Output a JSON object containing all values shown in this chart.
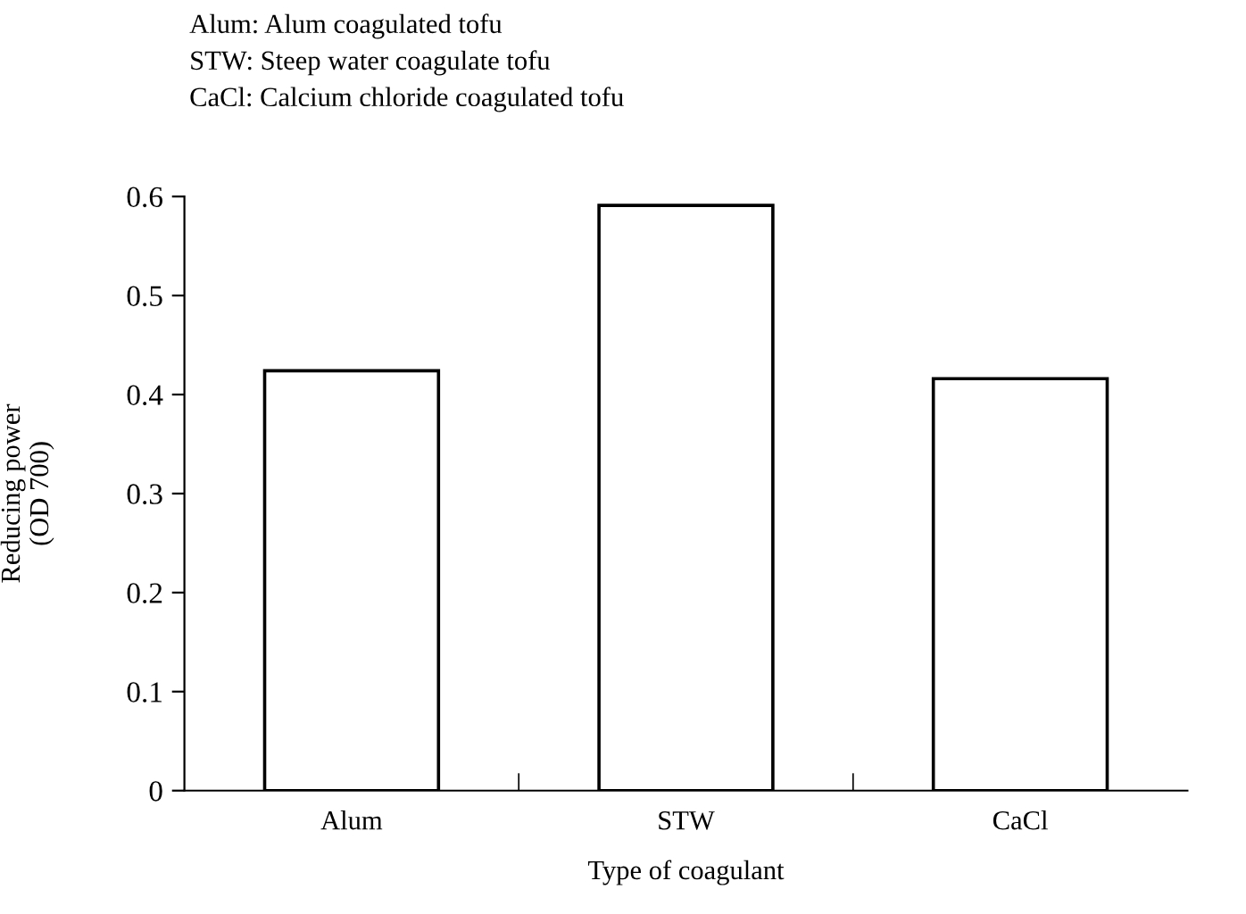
{
  "chart_data": {
    "type": "bar",
    "annotations": [
      "Alum: Alum coagulated tofu",
      "STW: Steep water coagulate tofu",
      "CaCl: Calcium chloride coagulated tofu"
    ],
    "xlabel": "Type of coagulant",
    "ylabel": "Reducing power\n(OD 700)",
    "categories": [
      "Alum",
      "STW",
      "CaCl"
    ],
    "values": [
      0.424,
      0.591,
      0.416
    ],
    "color": "#ffffff",
    "ylim": [
      0,
      0.6
    ],
    "yticks": [
      0,
      0.1,
      0.2,
      0.3,
      0.4,
      0.5,
      0.6
    ],
    "grid": false
  }
}
